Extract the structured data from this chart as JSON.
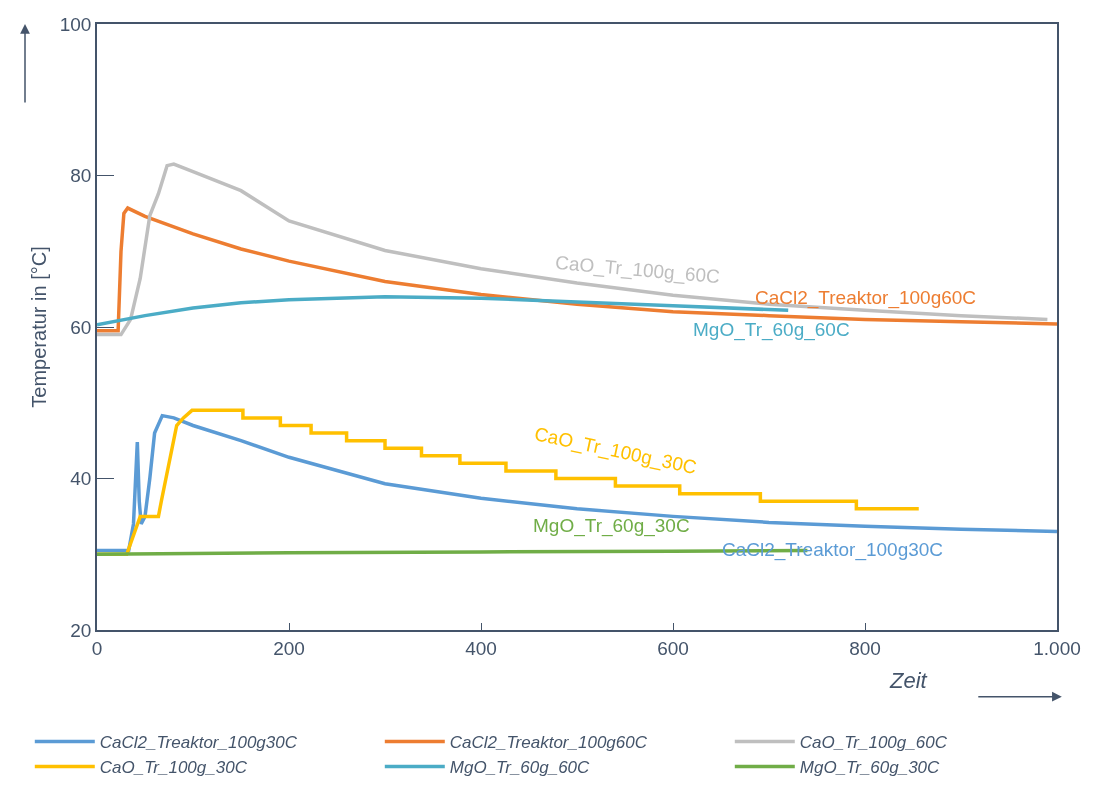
{
  "chart_data": {
    "type": "line",
    "xlabel": "Zeit",
    "ylabel": "Temperatur in [°C]",
    "xlim": [
      0,
      1000
    ],
    "ylim": [
      20,
      100
    ],
    "xticks": [
      0,
      200,
      400,
      600,
      800,
      {
        "value": 1000,
        "label": "1.000"
      }
    ],
    "yticks": [
      20,
      40,
      60,
      80,
      100
    ],
    "legend": "bottom",
    "marker": "none",
    "line_style": "solid",
    "series": [
      {
        "name": "CaCl2_Treaktor_100g30C",
        "color": "#5b9bd5",
        "x": [
          0,
          33,
          38,
          42,
          44,
          46,
          50,
          55,
          60,
          68,
          80,
          100,
          150,
          200,
          300,
          400,
          500,
          600,
          700,
          800,
          900,
          1000
        ],
        "values": [
          30.5,
          30.5,
          34,
          44.8,
          37,
          34,
          35,
          40,
          46,
          48.3,
          48,
          47,
          45,
          42.8,
          39.3,
          37.4,
          36,
          35,
          34.2,
          33.7,
          33.3,
          33
        ]
      },
      {
        "name": "CaCl2_Treaktor_100g60C",
        "color": "#ed7d31",
        "x": [
          0,
          22,
          25,
          28,
          32,
          50,
          100,
          150,
          200,
          300,
          400,
          500,
          600,
          700,
          800,
          900,
          1000
        ],
        "values": [
          59.5,
          59.5,
          70,
          75,
          75.7,
          74.6,
          72.3,
          70.3,
          68.7,
          66,
          64.3,
          63,
          62,
          61.5,
          61,
          60.7,
          60.4
        ]
      },
      {
        "name": "CaO_Tr_100g_60C",
        "color": "#bfbfbf",
        "x": [
          0,
          25,
          35,
          45,
          55,
          64,
          73,
          80,
          100,
          150,
          200,
          300,
          400,
          500,
          600,
          700,
          800,
          900,
          990
        ],
        "values": [
          59,
          59,
          61,
          66.4,
          74.7,
          77.6,
          81.3,
          81.5,
          80.5,
          78,
          74,
          70.1,
          67.7,
          65.8,
          64.2,
          63,
          62.2,
          61.5,
          61
        ]
      },
      {
        "name": "CaO_Tr_100g_30C",
        "color": "#ffc000",
        "x": [
          0,
          31,
          45,
          64,
          67,
          83,
          90,
          99,
          152,
          152,
          191,
          191,
          223,
          223,
          260,
          260,
          300,
          300,
          338,
          338,
          378,
          378,
          426,
          426,
          478,
          478,
          540,
          540,
          607,
          607,
          691,
          691,
          791,
          791,
          856
        ],
        "values": [
          30,
          30,
          35,
          35,
          37,
          47,
          48,
          49,
          49,
          48,
          48,
          47,
          47,
          46,
          46,
          45,
          45,
          44,
          44,
          43,
          43,
          42,
          42,
          41,
          41,
          40,
          40,
          39,
          39,
          38,
          38,
          37,
          37,
          36,
          36
        ]
      },
      {
        "name": "MgO_Tr_60g_60C",
        "color": "#4bacc6",
        "x": [
          0,
          50,
          100,
          150,
          200,
          300,
          400,
          500,
          600,
          720
        ],
        "values": [
          60.3,
          61.5,
          62.5,
          63.2,
          63.6,
          64,
          63.8,
          63.3,
          62.8,
          62.2
        ]
      },
      {
        "name": "MgO_Tr_60g_30C",
        "color": "#70ad47",
        "x": [
          0,
          200,
          400,
          600,
          740
        ],
        "values": [
          30,
          30.2,
          30.3,
          30.4,
          30.5
        ]
      }
    ]
  }
}
